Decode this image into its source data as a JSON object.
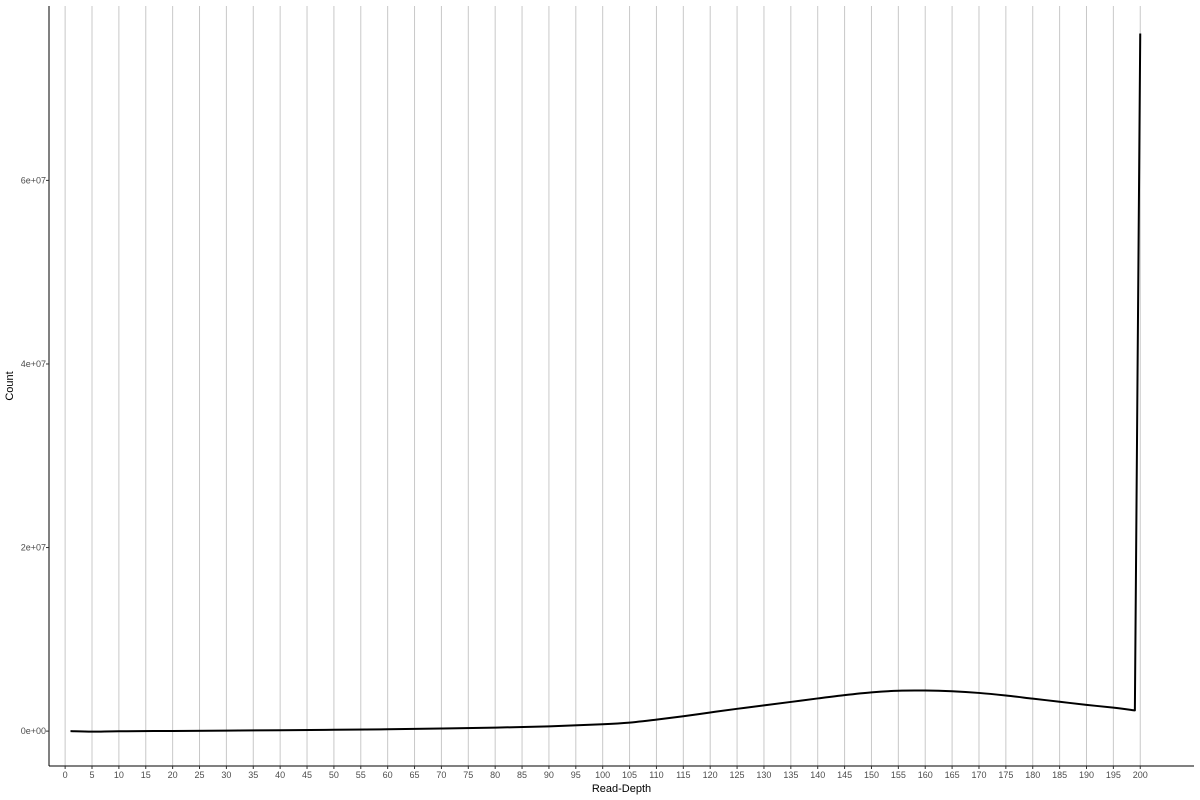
{
  "chart_data": {
    "type": "line",
    "title": "",
    "xlabel": "Read-Depth",
    "ylabel": "Count",
    "xlim": [
      -3,
      210
    ],
    "ylim": [
      -3800000,
      79000000
    ],
    "grid": {
      "vertical": true,
      "horizontal": false
    },
    "x_ticks": [
      0,
      5,
      10,
      15,
      20,
      25,
      30,
      35,
      40,
      45,
      50,
      55,
      60,
      65,
      70,
      75,
      80,
      85,
      90,
      95,
      100,
      105,
      110,
      115,
      120,
      125,
      130,
      135,
      140,
      145,
      150,
      155,
      160,
      165,
      170,
      175,
      180,
      185,
      190,
      195,
      200
    ],
    "x_tick_labels": [
      "0",
      "5",
      "10",
      "15",
      "20",
      "25",
      "30",
      "35",
      "40",
      "45",
      "50",
      "55",
      "60",
      "65",
      "70",
      "75",
      "80",
      "85",
      "90",
      "95",
      "100",
      "105",
      "110",
      "115",
      "120",
      "125",
      "130",
      "135",
      "140",
      "145",
      "150",
      "155",
      "160",
      "165",
      "170",
      "175",
      "180",
      "185",
      "190",
      "195",
      "200"
    ],
    "y_ticks": [
      0,
      20000000,
      40000000,
      60000000
    ],
    "y_tick_labels": [
      "0e+00",
      "2e+07",
      "4e+07",
      "6e+07"
    ],
    "line_color": "#000000",
    "grid_color": "#c8c8c8",
    "series": [
      {
        "x": [
          1,
          5,
          10,
          20,
          30,
          40,
          50,
          60,
          70,
          80,
          90,
          100,
          105,
          110,
          115,
          120,
          125,
          130,
          135,
          140,
          145,
          150,
          155,
          160,
          165,
          170,
          175,
          180,
          185,
          190,
          195,
          199,
          200
        ],
        "values": [
          0,
          -60000,
          -20000,
          20000,
          60000,
          100000,
          150000,
          200000,
          280000,
          380000,
          520000,
          750000,
          930000,
          1250000,
          1620000,
          2030000,
          2430000,
          2800000,
          3180000,
          3560000,
          3920000,
          4220000,
          4400000,
          4420000,
          4340000,
          4160000,
          3880000,
          3540000,
          3200000,
          2860000,
          2560000,
          2260000,
          76000000
        ]
      }
    ]
  }
}
